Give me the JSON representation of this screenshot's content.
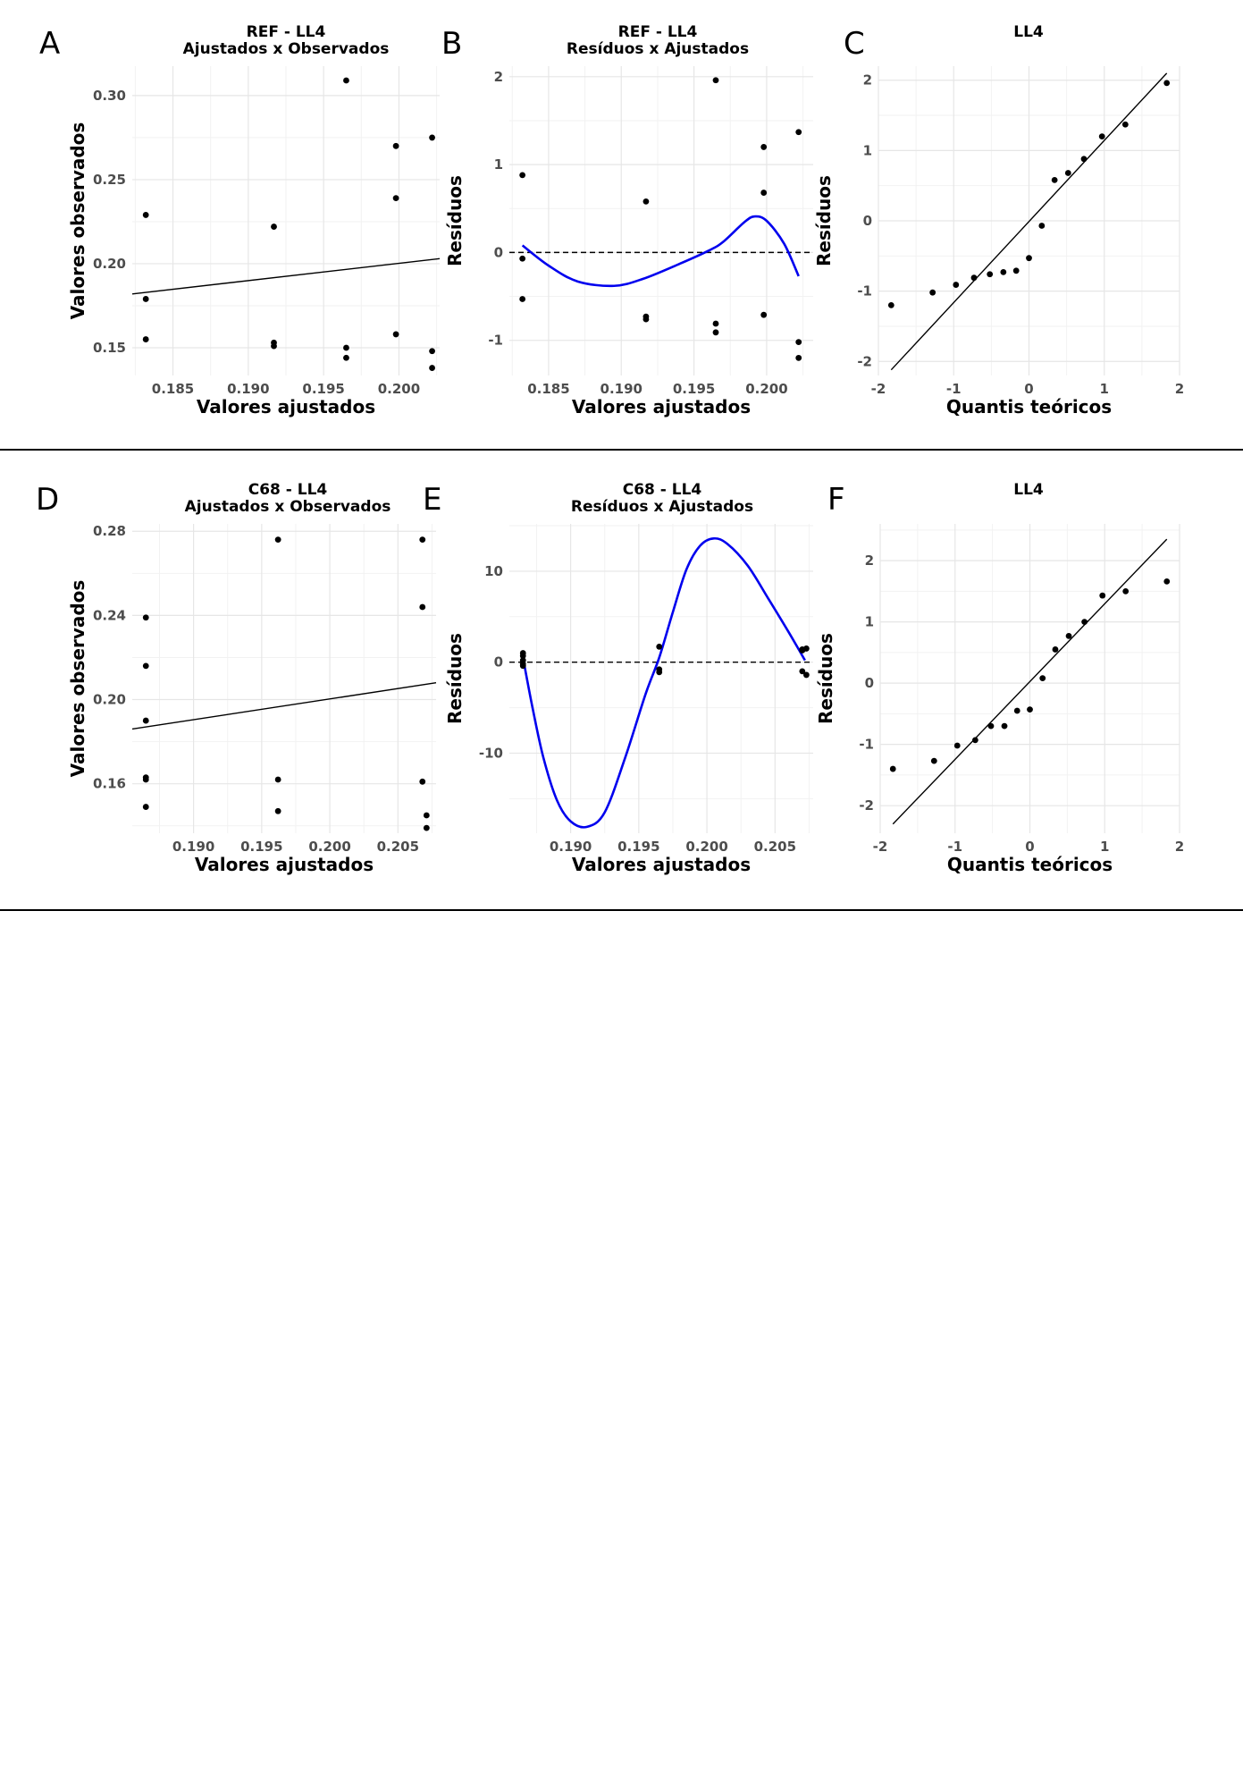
{
  "chart_data": [
    {
      "panel": "A",
      "type": "scatter",
      "title": [
        "REF - LL4",
        "Ajustados x Observados"
      ],
      "xlabel": "Valores ajustados",
      "ylabel": "Valores observados",
      "xlim": [
        0.1823,
        0.2027
      ],
      "ylim": [
        0.1335,
        0.3175
      ],
      "xticks": [
        0.185,
        0.19,
        0.195,
        0.2
      ],
      "xtick_labels": [
        "0.185",
        "0.190",
        "0.195",
        "0.200"
      ],
      "yticks": [
        0.15,
        0.2,
        0.25,
        0.3
      ],
      "ytick_labels": [
        "0.15",
        "0.20",
        "0.25",
        "0.30"
      ],
      "points": [
        [
          0.1832,
          0.229
        ],
        [
          0.1832,
          0.179
        ],
        [
          0.1832,
          0.155
        ],
        [
          0.1917,
          0.222
        ],
        [
          0.1917,
          0.153
        ],
        [
          0.1917,
          0.151
        ],
        [
          0.1965,
          0.309
        ],
        [
          0.1965,
          0.15
        ],
        [
          0.1965,
          0.144
        ],
        [
          0.1998,
          0.27
        ],
        [
          0.1998,
          0.239
        ],
        [
          0.1998,
          0.158
        ],
        [
          0.2022,
          0.275
        ],
        [
          0.2022,
          0.148
        ],
        [
          0.2022,
          0.138
        ]
      ],
      "fit_line": [
        [
          0.1823,
          0.182
        ],
        [
          0.2027,
          0.203
        ]
      ],
      "grid": true
    },
    {
      "panel": "B",
      "type": "scatter",
      "title": [
        "REF - LL4",
        "Resíduos x Ajustados"
      ],
      "xlabel": "Valores ajustados",
      "ylabel": "Resíduos",
      "xlim": [
        0.1823,
        0.2032
      ],
      "ylim": [
        -1.4,
        2.12
      ],
      "xticks": [
        0.185,
        0.19,
        0.195,
        0.2
      ],
      "xtick_labels": [
        "0.185",
        "0.190",
        "0.195",
        "0.200"
      ],
      "yticks": [
        -1,
        0,
        1,
        2
      ],
      "ytick_labels": [
        "-1",
        "0",
        "1",
        "2"
      ],
      "points": [
        [
          0.1832,
          0.88
        ],
        [
          0.1832,
          -0.07
        ],
        [
          0.1832,
          -0.53
        ],
        [
          0.1917,
          0.58
        ],
        [
          0.1917,
          -0.73
        ],
        [
          0.1917,
          -0.76
        ],
        [
          0.1965,
          1.96
        ],
        [
          0.1965,
          -0.81
        ],
        [
          0.1965,
          -0.91
        ],
        [
          0.1998,
          1.2
        ],
        [
          0.1998,
          0.68
        ],
        [
          0.1998,
          -0.71
        ],
        [
          0.2022,
          1.37
        ],
        [
          0.2022,
          -1.02
        ],
        [
          0.2022,
          -1.2
        ]
      ],
      "smooth": [
        [
          0.1832,
          0.08
        ],
        [
          0.185,
          -0.15
        ],
        [
          0.187,
          -0.33
        ],
        [
          0.1895,
          -0.38
        ],
        [
          0.1915,
          -0.3
        ],
        [
          0.194,
          -0.13
        ],
        [
          0.196,
          0.02
        ],
        [
          0.197,
          0.12
        ],
        [
          0.1985,
          0.35
        ],
        [
          0.1992,
          0.41
        ],
        [
          0.2,
          0.36
        ],
        [
          0.2012,
          0.1
        ],
        [
          0.2022,
          -0.27
        ]
      ],
      "hline": 0,
      "grid": true
    },
    {
      "panel": "C",
      "type": "scatter",
      "title": [
        "LL4"
      ],
      "xlabel": "Quantis teóricos",
      "ylabel": "Resíduos",
      "xlim": [
        -2.0,
        2.0
      ],
      "ylim": [
        -2.2,
        2.2
      ],
      "xticks": [
        -2,
        -1,
        0,
        1,
        2
      ],
      "xtick_labels": [
        "-2",
        "-1",
        "0",
        "1",
        "2"
      ],
      "yticks": [
        -2,
        -1,
        0,
        1,
        2
      ],
      "ytick_labels": [
        "-2",
        "-1",
        "0",
        "1",
        "2"
      ],
      "points": [
        [
          -1.83,
          -1.2
        ],
        [
          -1.28,
          -1.02
        ],
        [
          -0.97,
          -0.91
        ],
        [
          -0.73,
          -0.81
        ],
        [
          -0.52,
          -0.76
        ],
        [
          -0.34,
          -0.73
        ],
        [
          -0.17,
          -0.71
        ],
        [
          0.0,
          -0.53
        ],
        [
          0.17,
          -0.07
        ],
        [
          0.34,
          0.58
        ],
        [
          0.52,
          0.68
        ],
        [
          0.73,
          0.88
        ],
        [
          0.97,
          1.2
        ],
        [
          1.28,
          1.37
        ],
        [
          1.83,
          1.96
        ]
      ],
      "fit_line": [
        [
          -1.83,
          -2.12
        ],
        [
          1.83,
          2.1
        ]
      ],
      "grid": true
    },
    {
      "panel": "D",
      "type": "scatter",
      "title": [
        "C68 - LL4",
        "Ajustados x Observados"
      ],
      "xlabel": "Valores ajustados",
      "ylabel": "Valores observados",
      "xlim": [
        0.1855,
        0.2078
      ],
      "ylim": [
        0.1365,
        0.2835
      ],
      "xticks": [
        0.19,
        0.195,
        0.2,
        0.205
      ],
      "xtick_labels": [
        "0.190",
        "0.195",
        "0.200",
        "0.205"
      ],
      "yticks": [
        0.16,
        0.2,
        0.24,
        0.28
      ],
      "ytick_labels": [
        "0.16",
        "0.20",
        "0.24",
        "0.28"
      ],
      "points": [
        [
          0.1865,
          0.239
        ],
        [
          0.1865,
          0.216
        ],
        [
          0.1865,
          0.19
        ],
        [
          0.1865,
          0.163
        ],
        [
          0.1865,
          0.162
        ],
        [
          0.1865,
          0.149
        ],
        [
          0.1962,
          0.276
        ],
        [
          0.1962,
          0.162
        ],
        [
          0.1962,
          0.147
        ],
        [
          0.2068,
          0.276
        ],
        [
          0.2068,
          0.244
        ],
        [
          0.2068,
          0.161
        ],
        [
          0.2071,
          0.145
        ],
        [
          0.2071,
          0.139
        ]
      ],
      "fit_line": [
        [
          0.1855,
          0.186
        ],
        [
          0.2078,
          0.208
        ]
      ],
      "grid": true
    },
    {
      "panel": "E",
      "type": "scatter",
      "title": [
        "C68 - LL4",
        "Resíduos x Ajustados"
      ],
      "xlabel": "Valores ajustados",
      "ylabel": "Resíduos",
      "xlim": [
        0.1855,
        0.2078
      ],
      "ylim": [
        -18.8,
        15.2
      ],
      "xticks": [
        0.19,
        0.195,
        0.2,
        0.205
      ],
      "xtick_labels": [
        "0.190",
        "0.195",
        "0.200",
        "0.205"
      ],
      "yticks": [
        -10,
        0,
        10
      ],
      "ytick_labels": [
        "-10",
        "0",
        "10"
      ],
      "points": [
        [
          0.1865,
          1.0
        ],
        [
          0.1865,
          0.7
        ],
        [
          0.1865,
          0.2
        ],
        [
          0.1865,
          -0.2
        ],
        [
          0.1865,
          -0.4
        ],
        [
          0.1965,
          1.7
        ],
        [
          0.1965,
          -0.8
        ],
        [
          0.1965,
          -1.1
        ],
        [
          0.207,
          1.4
        ],
        [
          0.207,
          -1.0
        ],
        [
          0.207,
          1.3
        ],
        [
          0.2073,
          -1.4
        ],
        [
          0.2073,
          1.5
        ]
      ],
      "smooth": [
        [
          0.1865,
          0.5
        ],
        [
          0.1872,
          -5
        ],
        [
          0.188,
          -10.5
        ],
        [
          0.189,
          -15.2
        ],
        [
          0.19,
          -17.5
        ],
        [
          0.1912,
          -18.1
        ],
        [
          0.1925,
          -16.5
        ],
        [
          0.194,
          -10.5
        ],
        [
          0.1955,
          -3.5
        ],
        [
          0.1965,
          0.5
        ],
        [
          0.1975,
          5.5
        ],
        [
          0.1985,
          10.2
        ],
        [
          0.1995,
          12.8
        ],
        [
          0.2005,
          13.6
        ],
        [
          0.2015,
          13.0
        ],
        [
          0.203,
          10.6
        ],
        [
          0.2045,
          7.0
        ],
        [
          0.206,
          3.3
        ],
        [
          0.2072,
          0.2
        ]
      ],
      "hline": 0,
      "grid": true
    },
    {
      "panel": "F",
      "type": "scatter",
      "title": [
        "LL4"
      ],
      "xlabel": "Quantis teóricos",
      "ylabel": "Resíduos",
      "xlim": [
        -2.0,
        2.0
      ],
      "ylim": [
        -2.45,
        2.6
      ],
      "xticks": [
        -2,
        -1,
        0,
        1,
        2
      ],
      "xtick_labels": [
        "-2",
        "-1",
        "0",
        "1",
        "2"
      ],
      "yticks": [
        -2,
        -1,
        0,
        1,
        2
      ],
      "ytick_labels": [
        "-2",
        "-1",
        "0",
        "1",
        "2"
      ],
      "points": [
        [
          -1.83,
          -1.4
        ],
        [
          -1.28,
          -1.27
        ],
        [
          -0.97,
          -1.02
        ],
        [
          -0.73,
          -0.93
        ],
        [
          -0.52,
          -0.7
        ],
        [
          -0.34,
          -0.7
        ],
        [
          -0.17,
          -0.45
        ],
        [
          0.0,
          -0.43
        ],
        [
          0.17,
          0.08
        ],
        [
          0.34,
          0.55
        ],
        [
          0.52,
          0.77
        ],
        [
          0.73,
          1.0
        ],
        [
          0.97,
          1.43
        ],
        [
          1.28,
          1.5
        ],
        [
          1.83,
          1.66
        ]
      ],
      "fit_line": [
        [
          -1.83,
          -2.3
        ],
        [
          1.83,
          2.35
        ]
      ],
      "grid": true
    }
  ],
  "panel_letters": [
    "A",
    "B",
    "C",
    "D",
    "E",
    "F"
  ]
}
